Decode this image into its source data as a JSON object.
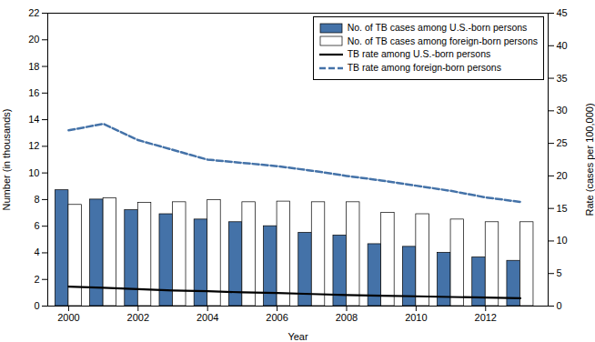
{
  "chart_data": {
    "type": "bar",
    "x": [
      2000,
      2001,
      2002,
      2003,
      2004,
      2005,
      2006,
      2007,
      2008,
      2009,
      2010,
      2011,
      2012,
      2013
    ],
    "xlim": [
      1999.4,
      2013.8
    ],
    "xticks": [
      2000,
      2002,
      2004,
      2006,
      2008,
      2010,
      2012
    ],
    "xlabel": "Year",
    "ylabel": "Number (in thousands)",
    "y2label": "Rate (cases per 100,000)",
    "ylim": [
      0,
      22
    ],
    "yticks": [
      0,
      2,
      4,
      6,
      8,
      10,
      12,
      14,
      16,
      18,
      20,
      22
    ],
    "y2lim": [
      0,
      45
    ],
    "y2ticks": [
      0,
      5,
      10,
      15,
      20,
      25,
      30,
      35,
      40,
      45
    ],
    "grid": false,
    "legend": "upper right",
    "series": [
      {
        "name": "No. of TB cases among U.S.-born persons",
        "type": "bar",
        "color": "#4472a8",
        "values": [
          8.7,
          8.0,
          7.2,
          6.9,
          6.5,
          6.3,
          6.0,
          5.5,
          5.3,
          4.65,
          4.45,
          4.0,
          3.65,
          3.4
        ]
      },
      {
        "name": "No. of TB cases among foreign-born persons",
        "type": "bar",
        "color": "#ffffff",
        "values": [
          7.6,
          8.1,
          7.75,
          7.8,
          7.95,
          7.8,
          7.85,
          7.8,
          7.8,
          7.0,
          6.9,
          6.5,
          6.3,
          6.3
        ]
      },
      {
        "name": "TB rate among U.S.-born persons",
        "type": "line",
        "color": "#000000",
        "line_style": "solid",
        "axis": "y2",
        "values": [
          3.0,
          2.8,
          2.6,
          2.4,
          2.3,
          2.1,
          2.0,
          1.85,
          1.7,
          1.6,
          1.5,
          1.4,
          1.3,
          1.2
        ]
      },
      {
        "name": "TB rate among foreign-born persons",
        "type": "line",
        "color": "#4472a8",
        "line_style": "dashed",
        "axis": "y2",
        "values": [
          27.0,
          28.0,
          25.5,
          24.0,
          22.5,
          22.0,
          21.5,
          20.8,
          20.0,
          19.3,
          18.5,
          17.7,
          16.7,
          16.0
        ]
      }
    ]
  }
}
